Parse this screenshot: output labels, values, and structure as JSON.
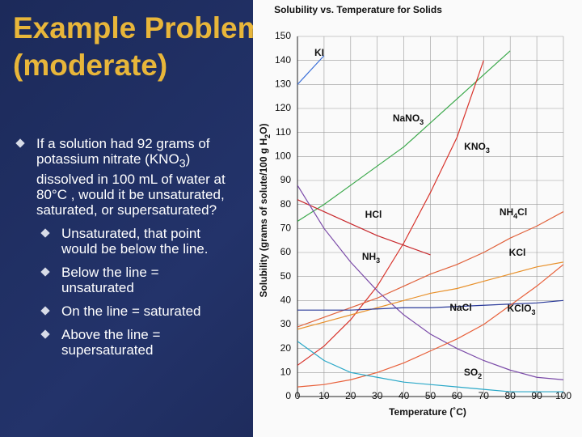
{
  "slide": {
    "title": "Example Problem (moderate)",
    "bullet": "If a solution had 92 grams of potassium nitrate (KNO3) dissolved in 100 mL of water at 80°C , would it be unsaturated, saturated, or supersaturated?",
    "sub_bullets": [
      "Unsaturated, that point would be below the line.",
      "Below the line = unsaturated",
      "On the line = saturated",
      "Above the line = supersaturated"
    ]
  },
  "chart_data": {
    "type": "line",
    "title": "Solubility vs. Temperature for Solids",
    "x_label": "Temperature (˚C)",
    "y_label": "Solubility (grams of solute/100 g H2O)",
    "x": [
      0,
      10,
      20,
      30,
      40,
      50,
      60,
      70,
      80,
      90,
      100
    ],
    "xlim": [
      0,
      100
    ],
    "xticks": [
      0,
      10,
      20,
      30,
      40,
      50,
      60,
      70,
      80,
      90,
      100
    ],
    "ylim": [
      0,
      150
    ],
    "yticks": [
      0,
      10,
      20,
      30,
      40,
      50,
      60,
      70,
      80,
      90,
      100,
      110,
      120,
      130,
      140,
      150
    ],
    "grid": true,
    "series": [
      {
        "name": "KI",
        "color": "#3a6fd8",
        "values": [
          130,
          142,
          null,
          null,
          null,
          null,
          null,
          null,
          null,
          null,
          null
        ]
      },
      {
        "name": "NaNO3",
        "color": "#3aa84a",
        "values": [
          73,
          80,
          88,
          96,
          104,
          114,
          124,
          134,
          144,
          null,
          null
        ]
      },
      {
        "name": "KNO3",
        "color": "#d8342c",
        "values": [
          13,
          21,
          32,
          46,
          64,
          85,
          108,
          140,
          null,
          null,
          null
        ]
      },
      {
        "name": "NH4Cl",
        "color": "#e0603a",
        "values": [
          29,
          33,
          37,
          41,
          46,
          51,
          55,
          60,
          66,
          71,
          77
        ]
      },
      {
        "name": "HCl",
        "color": "#c8282c",
        "values": [
          82,
          77,
          72,
          67,
          63,
          59,
          null,
          null,
          null,
          null,
          null
        ]
      },
      {
        "name": "NH3",
        "color": "#7a4aa8",
        "values": [
          88,
          70,
          56,
          44,
          34,
          26,
          20,
          15,
          11,
          8,
          7
        ]
      },
      {
        "name": "KCl",
        "color": "#e8902a",
        "values": [
          28,
          31,
          34,
          37,
          40,
          43,
          45,
          48,
          51,
          54,
          56
        ]
      },
      {
        "name": "NaCl",
        "color": "#2a3a9a",
        "values": [
          36,
          36,
          36,
          36.5,
          37,
          37,
          37.5,
          38,
          38.5,
          39,
          40
        ]
      },
      {
        "name": "KClO3",
        "color": "#e8603a",
        "values": [
          4,
          5,
          7,
          10,
          14,
          19,
          24,
          30,
          38,
          46,
          55
        ]
      },
      {
        "name": "SO2",
        "color": "#2aa8c8",
        "values": [
          23,
          15,
          10,
          8,
          6,
          5,
          4,
          3,
          2,
          2,
          2
        ]
      }
    ]
  }
}
